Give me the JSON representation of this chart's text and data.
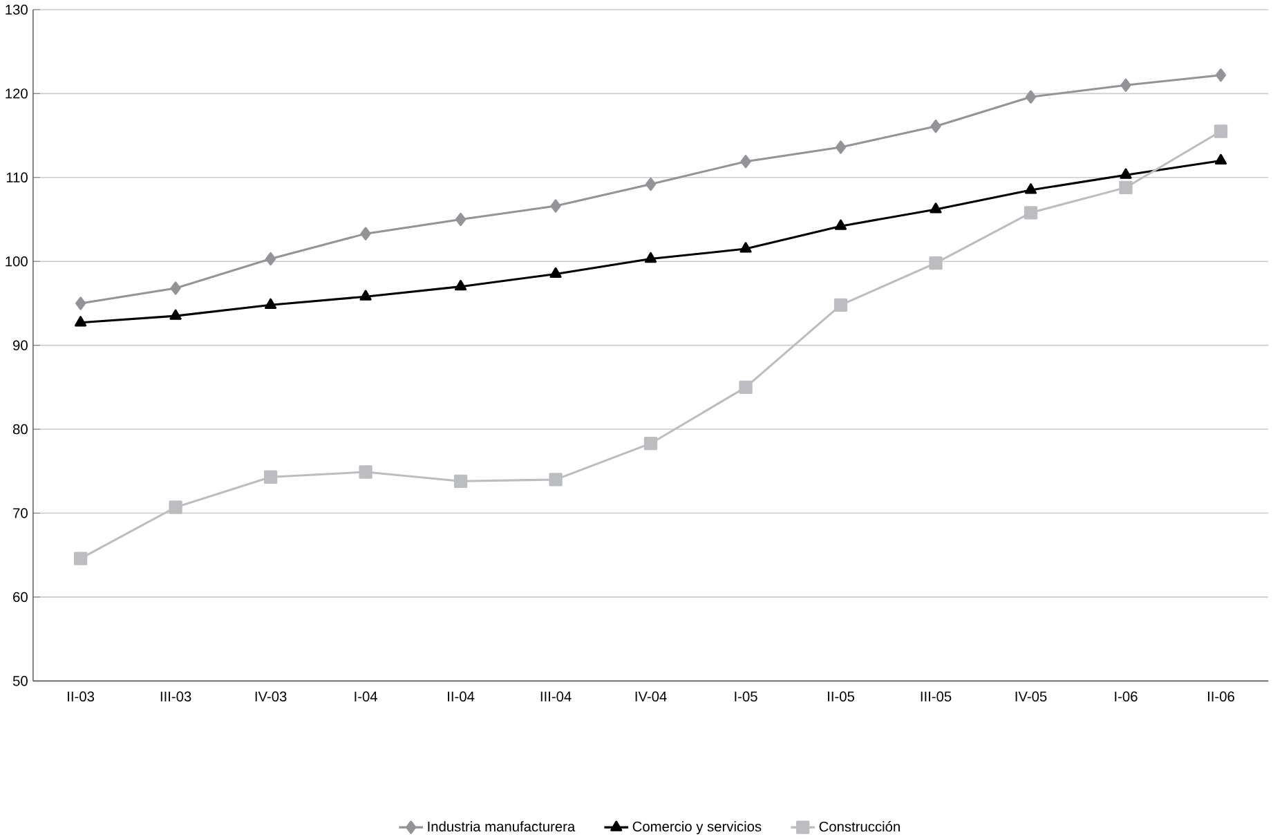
{
  "chart_data": {
    "type": "line",
    "categories": [
      "II-03",
      "III-03",
      "IV-03",
      "I-04",
      "II-04",
      "III-04",
      "IV-04",
      "I-05",
      "II-05",
      "III-05",
      "IV-05",
      "I-06",
      "II-06"
    ],
    "series": [
      {
        "name": "Industria manufacturera",
        "color": "#929497",
        "marker": "diamond",
        "values": [
          95,
          96.8,
          100.3,
          103.3,
          105,
          106.6,
          109.2,
          111.9,
          113.6,
          116.1,
          119.6,
          121,
          122.2
        ]
      },
      {
        "name": "Comercio y servicios",
        "color": "#000000",
        "marker": "triangle",
        "values": [
          92.7,
          93.5,
          94.8,
          95.8,
          97,
          98.5,
          100.3,
          101.5,
          104.2,
          106.2,
          108.5,
          110.3,
          112
        ]
      },
      {
        "name": "Construcción",
        "color": "#bcbdc0",
        "marker": "square",
        "values": [
          64.6,
          70.7,
          74.3,
          74.9,
          73.8,
          74,
          78.3,
          85,
          94.8,
          99.8,
          105.8,
          108.8,
          115.5
        ]
      }
    ],
    "ylim": [
      50,
      130
    ],
    "yticks": [
      50,
      60,
      70,
      80,
      90,
      100,
      110,
      120,
      130
    ],
    "grid": "y",
    "legend": "bottom"
  }
}
